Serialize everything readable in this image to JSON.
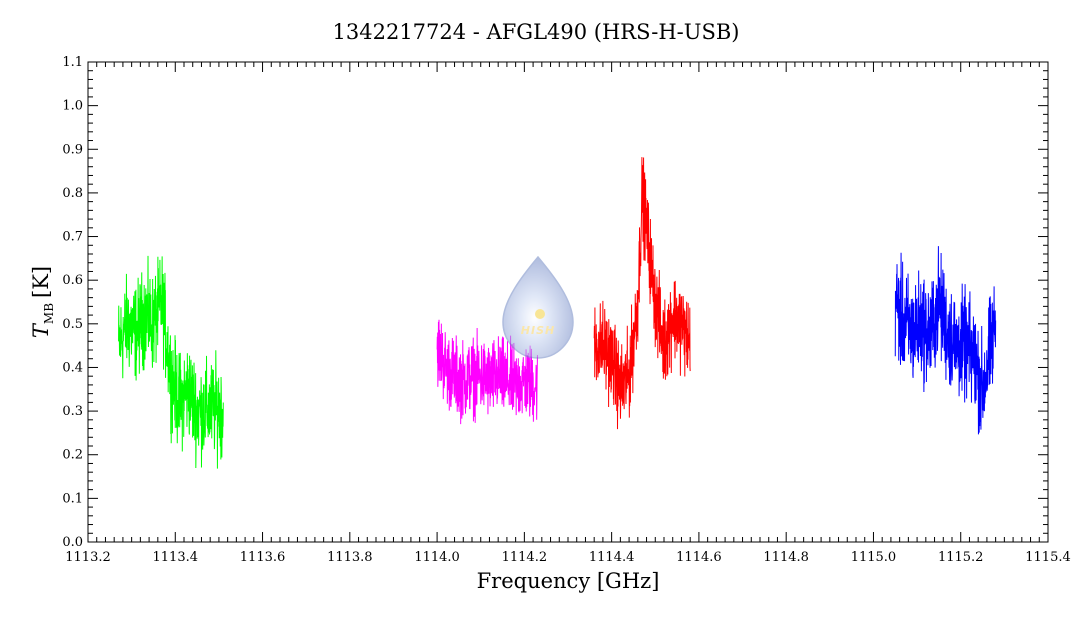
{
  "chart_data": {
    "type": "line",
    "title": "1342217724 - AFGL490 (HRS-H-USB)",
    "xlabel": "Frequency [GHz]",
    "ylabel": {
      "main": "T",
      "sub": "MB",
      "unit": "[K]"
    },
    "xlim": [
      1113.2,
      1115.4
    ],
    "ylim": [
      0.0,
      1.1
    ],
    "x_ticks": [
      "1113.2",
      "1113.4",
      "1113.6",
      "1113.8",
      "1114.0",
      "1114.2",
      "1114.4",
      "1114.6",
      "1114.8",
      "1115.0",
      "1115.2",
      "1115.4"
    ],
    "y_ticks": [
      "0.0",
      "0.1",
      "0.2",
      "0.3",
      "0.4",
      "0.5",
      "0.6",
      "0.7",
      "0.8",
      "0.9",
      "1.0",
      "1.1"
    ],
    "grid": false,
    "legend": "none",
    "series": [
      {
        "color": "#00ff00",
        "x": [
          1113.27,
          1113.29,
          1113.31,
          1113.33,
          1113.35,
          1113.37,
          1113.39,
          1113.41,
          1113.43,
          1113.45,
          1113.47,
          1113.49,
          1113.51
        ],
        "y": [
          0.45,
          0.5,
          0.48,
          0.52,
          0.5,
          0.55,
          0.38,
          0.32,
          0.35,
          0.3,
          0.3,
          0.31,
          0.3
        ],
        "noise": 0.1
      },
      {
        "color": "#ff00ff",
        "x": [
          1114.0,
          1114.02,
          1114.04,
          1114.06,
          1114.08,
          1114.1,
          1114.12,
          1114.14,
          1114.16,
          1114.18,
          1114.2,
          1114.22,
          1114.23
        ],
        "y": [
          0.45,
          0.4,
          0.38,
          0.37,
          0.38,
          0.38,
          0.37,
          0.38,
          0.37,
          0.36,
          0.37,
          0.36,
          0.36
        ],
        "noise": 0.08
      },
      {
        "color": "#ff0000",
        "x": [
          1114.36,
          1114.38,
          1114.4,
          1114.42,
          1114.44,
          1114.46,
          1114.47,
          1114.48,
          1114.5,
          1114.52,
          1114.54,
          1114.56,
          1114.58
        ],
        "y": [
          0.45,
          0.45,
          0.42,
          0.35,
          0.38,
          0.55,
          0.8,
          0.72,
          0.55,
          0.45,
          0.52,
          0.5,
          0.45
        ],
        "noise": 0.09
      },
      {
        "color": "#0000ff",
        "x": [
          1115.05,
          1115.07,
          1115.09,
          1115.11,
          1115.13,
          1115.15,
          1115.17,
          1115.19,
          1115.21,
          1115.23,
          1115.25,
          1115.27,
          1115.28
        ],
        "y": [
          0.55,
          0.5,
          0.48,
          0.5,
          0.47,
          0.55,
          0.48,
          0.45,
          0.45,
          0.42,
          0.35,
          0.45,
          0.5
        ],
        "noise": 0.11
      }
    ]
  },
  "watermark": {
    "text": "HISH",
    "color": "#8aa2d8"
  }
}
